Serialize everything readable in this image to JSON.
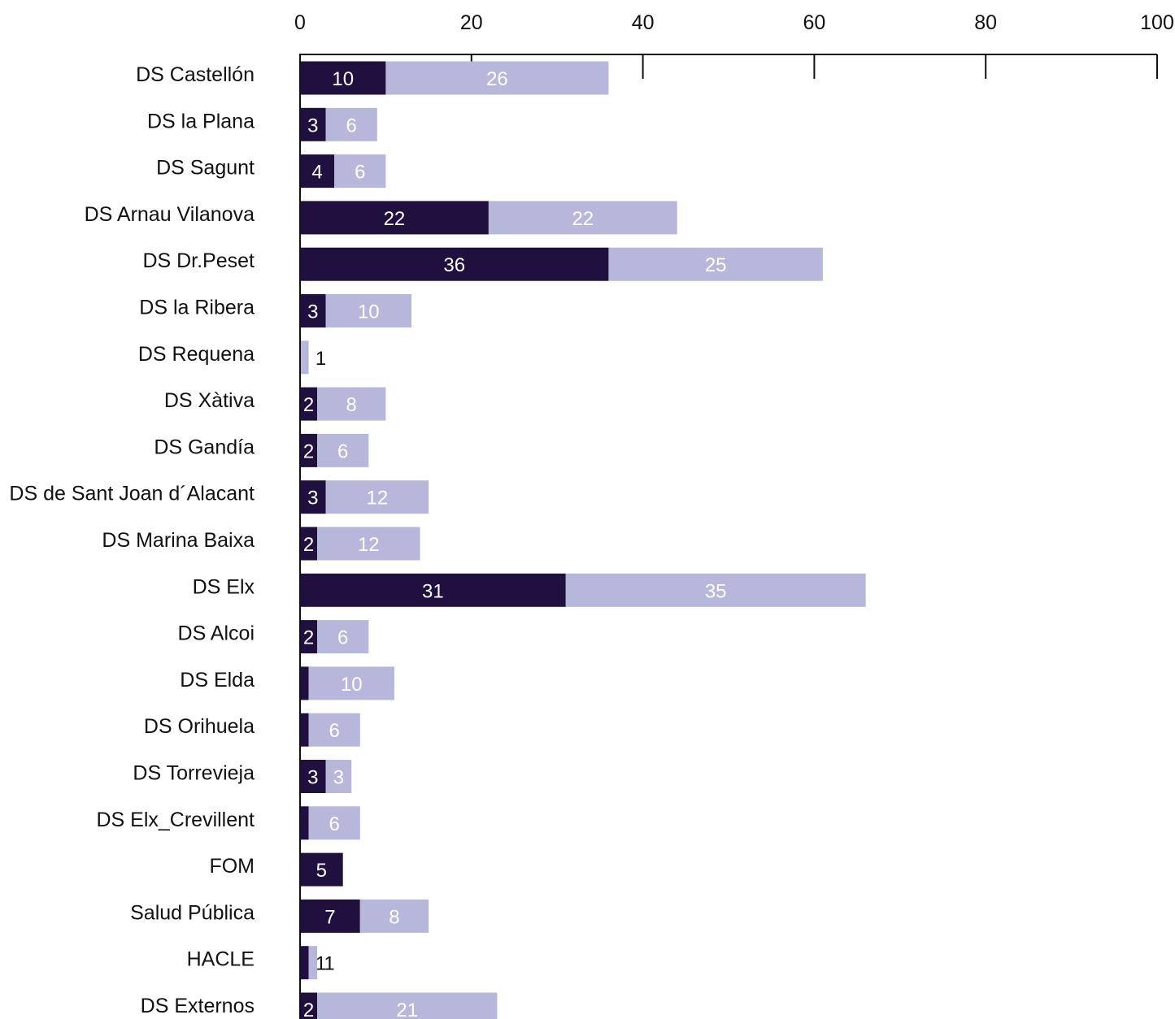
{
  "chart_data": {
    "type": "bar",
    "orientation": "horizontal",
    "stacked": true,
    "categories": [
      "DS Castellón",
      "DS la Plana",
      "DS Sagunt",
      "DS Arnau Vilanova",
      "DS Dr.Peset",
      "DS la Ribera",
      "DS Requena",
      "DS Xàtiva",
      "DS Gandía",
      "DS de Sant Joan d´Alacant",
      "DS Marina Baixa",
      "DS Elx",
      "DS Alcoi",
      "DS Elda",
      "DS Orihuela",
      "DS Torrevieja",
      "DS Elx_Crevillent",
      "FOM",
      "Salud Pública",
      "HACLE",
      "DS Externos"
    ],
    "series": [
      {
        "color": "#20103f",
        "label_color": "#ffffff",
        "values": [
          10,
          3,
          4,
          22,
          36,
          3,
          0,
          2,
          2,
          3,
          2,
          31,
          2,
          1,
          1,
          3,
          1,
          5,
          7,
          1,
          2
        ]
      },
      {
        "color": "#b7b7db",
        "label_color": "#ffffff",
        "values": [
          26,
          6,
          6,
          22,
          25,
          10,
          1,
          8,
          6,
          12,
          12,
          35,
          6,
          10,
          6,
          3,
          6,
          0,
          8,
          1,
          21
        ]
      }
    ],
    "xlim": [
      0,
      100
    ],
    "xticks": [
      "0",
      "20",
      "40",
      "60",
      "80",
      "100"
    ],
    "axis_position": "top",
    "grid": false,
    "title": "",
    "xlabel": "",
    "ylabel": ""
  }
}
